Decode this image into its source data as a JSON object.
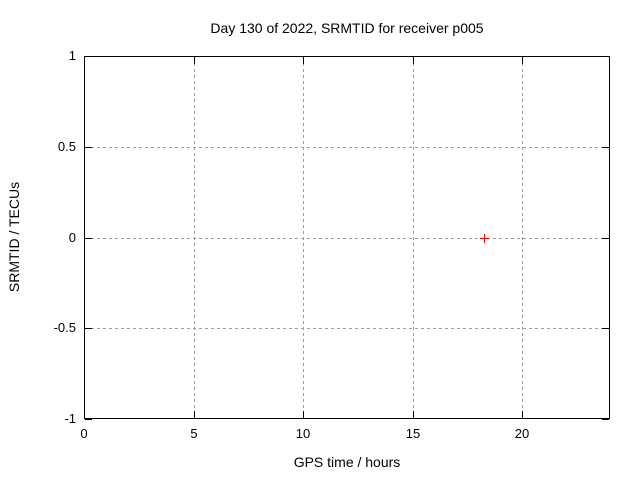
{
  "chart_data": {
    "type": "scatter",
    "title": "Day 130 of 2022, SRMTID for receiver p005",
    "xlabel": "GPS time / hours",
    "ylabel": "SRMTID / TECUs",
    "xlim": [
      0,
      24
    ],
    "ylim": [
      -1,
      1
    ],
    "xticks": [
      {
        "value": 0,
        "label": "0"
      },
      {
        "value": 5,
        "label": "5"
      },
      {
        "value": 10,
        "label": "10"
      },
      {
        "value": 15,
        "label": "15"
      },
      {
        "value": 20,
        "label": "20"
      }
    ],
    "yticks": [
      {
        "value": -1,
        "label": "-1"
      },
      {
        "value": -0.5,
        "label": "-0.5"
      },
      {
        "value": 0,
        "label": "0"
      },
      {
        "value": 0.5,
        "label": "0.5"
      },
      {
        "value": 1,
        "label": "1"
      }
    ],
    "grid": true,
    "legend_position": "none",
    "series": [
      {
        "marker": "plus",
        "color": "#ff0000",
        "points": [
          {
            "x": 18.25,
            "y": 0
          }
        ]
      }
    ],
    "colors": {
      "background": "#ffffff",
      "axis": "#000000",
      "grid": "#9e9e9e",
      "point": "#ff0000"
    }
  }
}
